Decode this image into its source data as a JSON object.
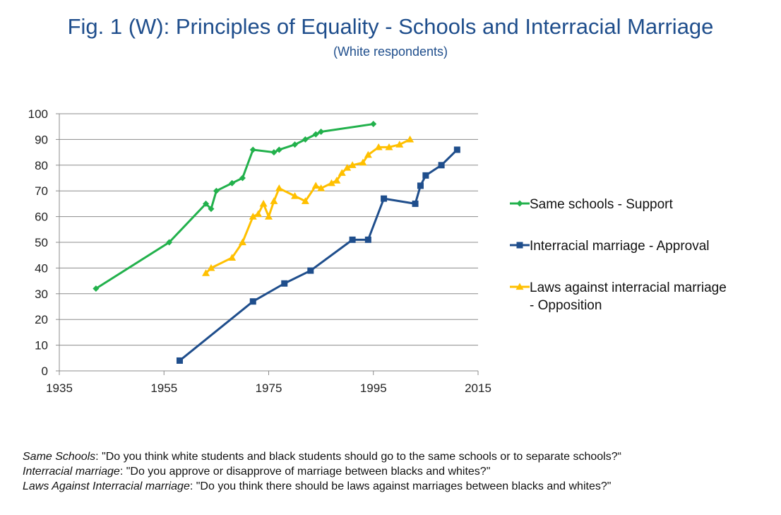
{
  "page": {
    "title": "Fig. 1 (W): Principles of Equality - Schools and Interracial Marriage",
    "subtitle": "(White respondents)"
  },
  "chart_data": {
    "type": "line",
    "title": "Fig. 1 (W): Principles of Equality - Schools and Interracial Marriage",
    "subtitle": "(White respondents)",
    "xlabel": "",
    "ylabel": "",
    "xlim": [
      1935,
      2015
    ],
    "ylim": [
      0,
      100
    ],
    "xticks": [
      1935,
      1955,
      1975,
      1995,
      2015
    ],
    "yticks": [
      0,
      10,
      20,
      30,
      40,
      50,
      60,
      70,
      80,
      90,
      100
    ],
    "grid": "horizontal",
    "legend_position": "right",
    "series": [
      {
        "name": "Same schools - Support",
        "color": "#22b14c",
        "marker": "diamond",
        "points": [
          [
            1942,
            32
          ],
          [
            1956,
            50
          ],
          [
            1963,
            65
          ],
          [
            1964,
            63
          ],
          [
            1965,
            70
          ],
          [
            1968,
            73
          ],
          [
            1970,
            75
          ],
          [
            1972,
            86
          ],
          [
            1976,
            85
          ],
          [
            1977,
            86
          ],
          [
            1980,
            88
          ],
          [
            1982,
            90
          ],
          [
            1984,
            92
          ],
          [
            1985,
            93
          ],
          [
            1995,
            96
          ]
        ]
      },
      {
        "name": "Interracial marriage - Approval",
        "color": "#1f4e8c",
        "marker": "square",
        "points": [
          [
            1958,
            4
          ],
          [
            1972,
            27
          ],
          [
            1978,
            34
          ],
          [
            1983,
            39
          ],
          [
            1991,
            51
          ],
          [
            1994,
            51
          ],
          [
            1997,
            67
          ],
          [
            2003,
            65
          ],
          [
            2004,
            72
          ],
          [
            2005,
            76
          ],
          [
            2008,
            80
          ],
          [
            2011,
            86
          ]
        ]
      },
      {
        "name": "Laws against interracial marriage - Opposition",
        "legend_lines": [
          "Laws against interracial marriage",
          "- Opposition"
        ],
        "color": "#ffc000",
        "marker": "triangle",
        "points": [
          [
            1963,
            38
          ],
          [
            1964,
            40
          ],
          [
            1968,
            44
          ],
          [
            1970,
            50
          ],
          [
            1972,
            60
          ],
          [
            1973,
            61
          ],
          [
            1974,
            65
          ],
          [
            1975,
            60
          ],
          [
            1976,
            66
          ],
          [
            1977,
            71
          ],
          [
            1980,
            68
          ],
          [
            1982,
            66
          ],
          [
            1984,
            72
          ],
          [
            1985,
            71
          ],
          [
            1987,
            73
          ],
          [
            1988,
            74
          ],
          [
            1989,
            77
          ],
          [
            1990,
            79
          ],
          [
            1991,
            80
          ],
          [
            1993,
            81
          ],
          [
            1994,
            84
          ],
          [
            1996,
            87
          ],
          [
            1998,
            87
          ],
          [
            2000,
            88
          ],
          [
            2002,
            90
          ]
        ]
      }
    ]
  },
  "notes": [
    {
      "label": "Same Schools",
      "text": ": \"Do you think white students and black students should go to the same schools or to separate schools?“"
    },
    {
      "label": "Interracial marriage",
      "text": ": \"Do you approve or disapprove of marriage between blacks and whites?\""
    },
    {
      "label": "Laws Against Interracial marriage",
      "text": ": \"Do you think there should be laws against marriages between blacks and whites?\""
    }
  ]
}
